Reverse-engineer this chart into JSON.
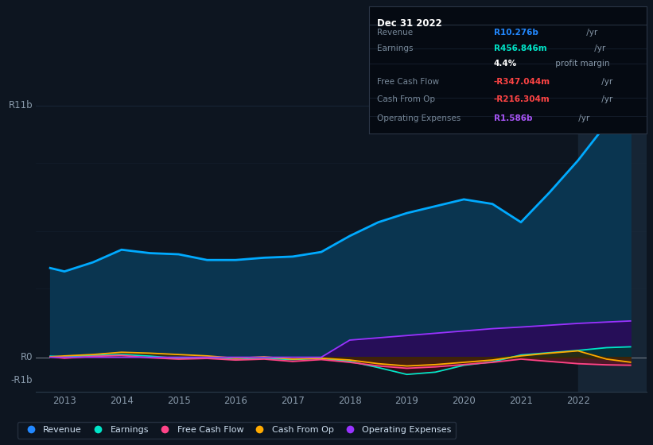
{
  "background_color": "#0d1520",
  "plot_bg_color": "#0d1520",
  "years": [
    2012.75,
    2013,
    2013.5,
    2014,
    2014.5,
    2015,
    2015.5,
    2016,
    2016.5,
    2017,
    2017.5,
    2018,
    2018.5,
    2019,
    2019.5,
    2020,
    2020.5,
    2021,
    2021.5,
    2022,
    2022.5,
    2022.92
  ],
  "revenue": [
    3.9,
    3.75,
    4.15,
    4.7,
    4.55,
    4.5,
    4.25,
    4.25,
    4.35,
    4.4,
    4.6,
    5.3,
    5.9,
    6.3,
    6.6,
    6.9,
    6.7,
    5.9,
    7.2,
    8.6,
    10.2,
    10.276
  ],
  "earnings": [
    0.05,
    0.02,
    0.08,
    0.12,
    0.05,
    -0.05,
    -0.02,
    -0.1,
    -0.05,
    -0.1,
    -0.05,
    -0.18,
    -0.45,
    -0.75,
    -0.65,
    -0.35,
    -0.2,
    0.1,
    0.2,
    0.3,
    0.42,
    0.457
  ],
  "fcf": [
    0.02,
    -0.04,
    0.04,
    0.08,
    -0.02,
    -0.08,
    -0.05,
    -0.12,
    -0.08,
    -0.18,
    -0.1,
    -0.22,
    -0.38,
    -0.48,
    -0.42,
    -0.32,
    -0.22,
    -0.08,
    -0.18,
    -0.28,
    -0.33,
    -0.347
  ],
  "cash_from_op": [
    0.02,
    0.06,
    0.12,
    0.22,
    0.18,
    0.12,
    0.06,
    -0.04,
    0.02,
    -0.08,
    -0.04,
    -0.12,
    -0.28,
    -0.38,
    -0.32,
    -0.22,
    -0.12,
    0.06,
    0.18,
    0.28,
    -0.08,
    -0.216
  ],
  "op_expenses": [
    0.0,
    0.0,
    0.0,
    0.0,
    0.0,
    0.0,
    0.0,
    0.0,
    0.0,
    0.0,
    0.0,
    0.75,
    0.85,
    0.95,
    1.05,
    1.15,
    1.25,
    1.32,
    1.4,
    1.48,
    1.54,
    1.586
  ],
  "revenue_line_color": "#00aaff",
  "revenue_fill_color": "#0a3550",
  "earnings_line_color": "#00e5c8",
  "earnings_pos_fill": "#003a35",
  "earnings_neg_fill": "#3a0a15",
  "fcf_line_color": "#ff4488",
  "fcf_neg_fill": "#5a1525",
  "cash_from_op_line_color": "#ffaa00",
  "cash_from_op_pos_fill": "#3a2a00",
  "cash_from_op_neg_fill": "#3a2a00",
  "op_expenses_line_color": "#9933ff",
  "op_expenses_fill_color": "#2a0a5a",
  "highlight_fill_color": "#162535",
  "ylim": [
    -1.5,
    12.5
  ],
  "y_r11b": 11.0,
  "y_r0": 0.0,
  "y_rm1b": -1.0,
  "xticks": [
    2013,
    2014,
    2015,
    2016,
    2017,
    2018,
    2019,
    2020,
    2021,
    2022
  ],
  "grid_color": "#1e2e3e",
  "grid_alpha": 0.7,
  "highlight_start": 2022.0,
  "info_box": {
    "title": "Dec 31 2022",
    "rows": [
      {
        "label": "Revenue",
        "value": "R10.276b",
        "unit": " /yr",
        "value_color": "#2288ff"
      },
      {
        "label": "Earnings",
        "value": "R456.846m",
        "unit": " /yr",
        "value_color": "#00e5c8"
      },
      {
        "label": "",
        "value": "4.4%",
        "unit": " profit margin",
        "value_color": "#ffffff"
      },
      {
        "label": "Free Cash Flow",
        "value": "-R347.044m",
        "unit": " /yr",
        "value_color": "#ff4444"
      },
      {
        "label": "Cash From Op",
        "value": "-R216.304m",
        "unit": " /yr",
        "value_color": "#ff4444"
      },
      {
        "label": "Operating Expenses",
        "value": "R1.586b",
        "unit": " /yr",
        "value_color": "#a855f7"
      }
    ]
  },
  "legend_items": [
    {
      "label": "Revenue",
      "color": "#2288ff"
    },
    {
      "label": "Earnings",
      "color": "#00e5c8"
    },
    {
      "label": "Free Cash Flow",
      "color": "#ff4488"
    },
    {
      "label": "Cash From Op",
      "color": "#ffaa00"
    },
    {
      "label": "Operating Expenses",
      "color": "#9933ff"
    }
  ]
}
